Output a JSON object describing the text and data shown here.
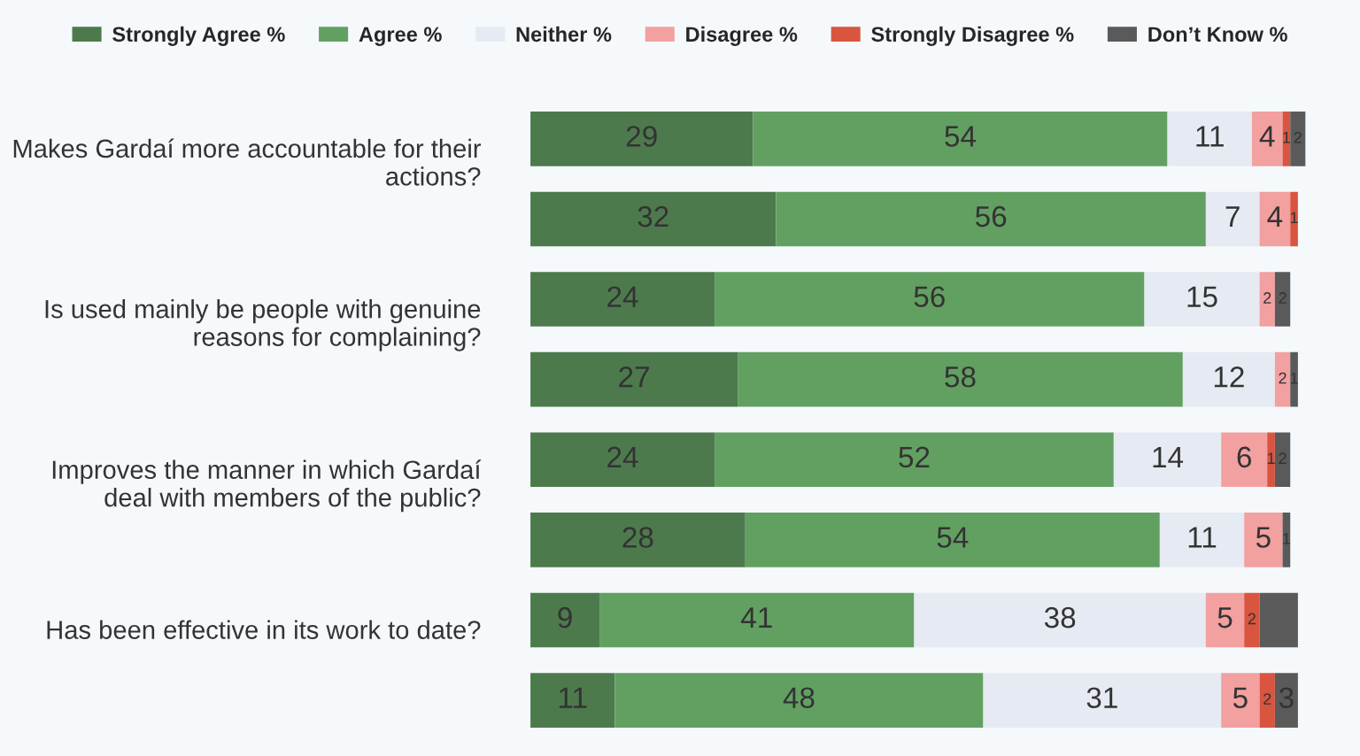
{
  "chart_data": {
    "type": "bar",
    "orientation": "horizontal",
    "stacked": true,
    "legend": "top",
    "grid": false,
    "tick_labels": "y",
    "categories": [
      "Makes Gardaí more accountable for their actions?",
      null,
      "Is used mainly be people with genuine reasons for complaining?",
      null,
      "Improves the manner in which Gardaí deal with members of the public?",
      null,
      "Has been effective in its work to date?",
      null
    ],
    "series": [
      {
        "name": "Strongly Agree %",
        "color": "#4d7a4d",
        "values": [
          29,
          32,
          24,
          27,
          24,
          28,
          9,
          11
        ],
        "value_labels": [
          "29",
          "32",
          "24",
          "27",
          "24",
          "28",
          "9",
          "11"
        ]
      },
      {
        "name": "Agree %",
        "color": "#62a062",
        "values": [
          54,
          56,
          56,
          58,
          52,
          54,
          41,
          48
        ],
        "value_labels": [
          "54",
          "56",
          "56",
          "58",
          "52",
          "54",
          "41",
          "48"
        ]
      },
      {
        "name": "Neither %",
        "color": "#e6eaf2",
        "values": [
          11,
          7,
          15,
          12,
          14,
          11,
          38,
          31
        ],
        "value_labels": [
          "11",
          "7",
          "15",
          "12",
          "14",
          "11",
          "38",
          "31"
        ]
      },
      {
        "name": "Disagree %",
        "color": "#f2a0a0",
        "values": [
          4,
          4,
          2,
          2,
          6,
          5,
          5,
          5
        ],
        "value_labels": [
          "4",
          "4",
          "2",
          "2",
          "6",
          "5",
          "5",
          "5"
        ]
      },
      {
        "name": "Strongly Disagree %",
        "color": "#d9553f",
        "values": [
          1,
          1,
          null,
          null,
          1,
          null,
          2,
          2
        ],
        "value_labels": [
          "1",
          "1",
          null,
          null,
          "1",
          null,
          "2",
          "2"
        ]
      },
      {
        "name": "Don’t Know %",
        "color": "#5a5a5a",
        "values": [
          2,
          null,
          2,
          1,
          2,
          1,
          5,
          3
        ],
        "value_labels": [
          "2",
          null,
          "2",
          "1",
          "2",
          "1",
          null,
          "3"
        ]
      }
    ]
  }
}
